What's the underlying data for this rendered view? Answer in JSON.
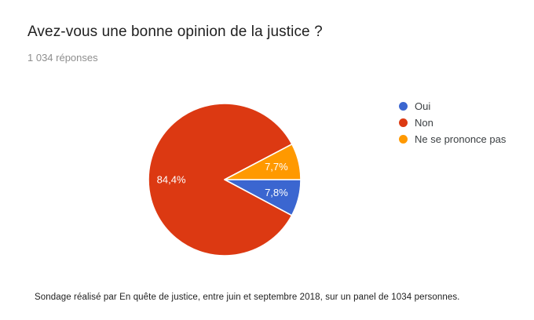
{
  "header": {
    "title": "Avez-vous une bonne opinion de la justice ?",
    "responses": "1 034 réponses"
  },
  "chart_data": {
    "type": "pie",
    "title": "Avez-vous une bonne opinion de la justice ?",
    "subtitle": "1 034 réponses",
    "unit": "percent",
    "start_angle_deg": 0,
    "direction": "clockwise",
    "legend_position": "right",
    "slices": [
      {
        "label": "Oui",
        "value": 7.8,
        "display": "7,8%",
        "color": "#3B66D0"
      },
      {
        "label": "Non",
        "value": 84.4,
        "display": "84,4%",
        "color": "#DC3912"
      },
      {
        "label": "Ne se prononce pas",
        "value": 7.7,
        "display": "7,7%",
        "color": "#FF9900"
      }
    ]
  },
  "legend": {
    "items": [
      {
        "label": "Oui",
        "color": "#3B66D0"
      },
      {
        "label": "Non",
        "color": "#DC3912"
      },
      {
        "label": "Ne se prononce pas",
        "color": "#FF9900"
      }
    ]
  },
  "footer": {
    "caption": "Sondage réalisé par En quête de justice, entre juin et septembre 2018, sur un panel de 1034 personnes."
  }
}
